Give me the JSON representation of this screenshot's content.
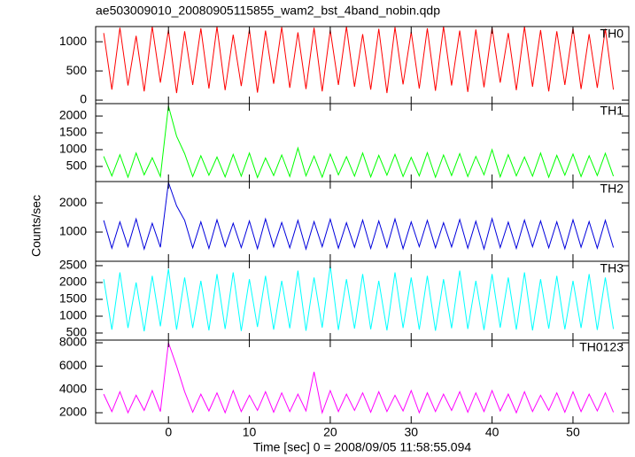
{
  "chart_data": [
    {
      "type": "line",
      "title": "ae503009010_20080905115855_wam2_bst_4band_nobin.qdp",
      "label": "TH0",
      "color": "#ff0000",
      "x": [
        -8,
        -7,
        -6,
        -5,
        -4,
        -3,
        -2,
        -1,
        0,
        1,
        2,
        3,
        4,
        5,
        6,
        7,
        8,
        9,
        10,
        11,
        12,
        13,
        14,
        15,
        16,
        17,
        18,
        19,
        20,
        21,
        22,
        23,
        24,
        25,
        26,
        27,
        28,
        29,
        30,
        31,
        32,
        33,
        34,
        35,
        36,
        37,
        38,
        39,
        40,
        41,
        42,
        43,
        44,
        45,
        46,
        47,
        48,
        49,
        50,
        51,
        52,
        53,
        54,
        55
      ],
      "values": [
        1150,
        180,
        1240,
        250,
        1100,
        150,
        1260,
        300,
        1200,
        120,
        1180,
        260,
        1230,
        200,
        1260,
        170,
        1120,
        240,
        1210,
        130,
        1190,
        280,
        1250,
        210,
        1160,
        190,
        1240,
        150,
        1200,
        260,
        1260,
        230,
        1130,
        180,
        1220,
        120,
        1250,
        270,
        1170,
        200,
        1230,
        160,
        1260,
        250,
        1190,
        140,
        1210,
        220,
        1240,
        300,
        1150,
        170,
        1260,
        230,
        1200,
        150,
        1180,
        260,
        1240,
        190,
        1130,
        210,
        1220,
        180
      ],
      "ylim": [
        -60,
        1260
      ],
      "yticks": [
        0,
        500,
        1000
      ]
    },
    {
      "type": "line",
      "label": "TH1",
      "color": "#00ff00",
      "x": [
        -8,
        -7,
        -6,
        -5,
        -4,
        -3,
        -2,
        -1,
        0,
        1,
        2,
        3,
        4,
        5,
        6,
        7,
        8,
        9,
        10,
        11,
        12,
        13,
        14,
        15,
        16,
        17,
        18,
        19,
        20,
        21,
        22,
        23,
        24,
        25,
        26,
        27,
        28,
        29,
        30,
        31,
        32,
        33,
        34,
        35,
        36,
        37,
        38,
        39,
        40,
        41,
        42,
        43,
        44,
        45,
        46,
        47,
        48,
        49,
        50,
        51,
        52,
        53,
        54,
        55
      ],
      "values": [
        800,
        220,
        850,
        180,
        900,
        250,
        760,
        200,
        2300,
        1400,
        880,
        200,
        820,
        240,
        780,
        190,
        860,
        210,
        900,
        170,
        750,
        230,
        840,
        200,
        1050,
        220,
        810,
        180,
        870,
        250,
        790,
        210,
        900,
        190,
        830,
        240,
        860,
        200,
        770,
        220,
        910,
        180,
        840,
        230,
        880,
        200,
        800,
        250,
        1000,
        190,
        850,
        220,
        780,
        210,
        900,
        180,
        830,
        240,
        870,
        200,
        820,
        230,
        890,
        210
      ],
      "ylim": [
        50,
        2370
      ],
      "yticks": [
        500,
        1000,
        1500,
        2000
      ]
    },
    {
      "type": "line",
      "label": "TH2",
      "color": "#0000dd",
      "ylabel": "Counts/sec",
      "x": [
        -8,
        -7,
        -6,
        -5,
        -4,
        -3,
        -2,
        -1,
        0,
        1,
        2,
        3,
        4,
        5,
        6,
        7,
        8,
        9,
        10,
        11,
        12,
        13,
        14,
        15,
        16,
        17,
        18,
        19,
        20,
        21,
        22,
        23,
        24,
        25,
        26,
        27,
        28,
        29,
        30,
        31,
        32,
        33,
        34,
        35,
        36,
        37,
        38,
        39,
        40,
        41,
        42,
        43,
        44,
        45,
        46,
        47,
        48,
        49,
        50,
        51,
        52,
        53,
        54,
        55
      ],
      "values": [
        1400,
        450,
        1350,
        500,
        1450,
        420,
        1300,
        480,
        2700,
        1900,
        1400,
        460,
        1350,
        440,
        1420,
        500,
        1300,
        470,
        1380,
        430,
        1450,
        490,
        1330,
        460,
        1400,
        420,
        1360,
        500,
        1440,
        450,
        1320,
        480,
        1410,
        440,
        1380,
        470,
        1450,
        430,
        1350,
        500,
        1400,
        460,
        1320,
        490,
        1430,
        450,
        1370,
        420,
        1460,
        470,
        1340,
        440,
        1410,
        500,
        1380,
        460,
        1350,
        430,
        1420,
        480,
        1360,
        450,
        1400,
        470
      ],
      "ylim": [
        0,
        2730
      ],
      "yticks": [
        1000,
        2000
      ]
    },
    {
      "type": "line",
      "label": "TH3",
      "color": "#00ffff",
      "x": [
        -8,
        -7,
        -6,
        -5,
        -4,
        -3,
        -2,
        -1,
        0,
        1,
        2,
        3,
        4,
        5,
        6,
        7,
        8,
        9,
        10,
        11,
        12,
        13,
        14,
        15,
        16,
        17,
        18,
        19,
        20,
        21,
        22,
        23,
        24,
        25,
        26,
        27,
        28,
        29,
        30,
        31,
        32,
        33,
        34,
        35,
        36,
        37,
        38,
        39,
        40,
        41,
        42,
        43,
        44,
        45,
        46,
        47,
        48,
        49,
        50,
        51,
        52,
        53,
        54,
        55
      ],
      "values": [
        2100,
        600,
        2300,
        650,
        2000,
        550,
        2200,
        700,
        2400,
        600,
        2150,
        650,
        2050,
        580,
        2250,
        620,
        2300,
        560,
        2100,
        680,
        2200,
        600,
        2050,
        640,
        2350,
        570,
        2150,
        660,
        2500,
        590,
        2100,
        630,
        2250,
        610,
        2050,
        580,
        2300,
        650,
        2150,
        600,
        2200,
        570,
        2100,
        640,
        2350,
        620,
        2050,
        590,
        2250,
        660,
        2150,
        600,
        2300,
        580,
        2100,
        630,
        2200,
        610,
        2050,
        650,
        2250,
        590,
        2150,
        620
      ],
      "ylim": [
        290,
        2630
      ],
      "yticks": [
        500,
        1000,
        1500,
        2000,
        2500
      ]
    },
    {
      "type": "line",
      "label": "TH0123",
      "color": "#ff00ff",
      "xlabel": "Time [sec] 0 = 2008/09/05 11:58:55.094",
      "x": [
        -8,
        -7,
        -6,
        -5,
        -4,
        -3,
        -2,
        -1,
        0,
        1,
        2,
        3,
        4,
        5,
        6,
        7,
        8,
        9,
        10,
        11,
        12,
        13,
        14,
        15,
        16,
        17,
        18,
        19,
        20,
        21,
        22,
        23,
        24,
        25,
        26,
        27,
        28,
        29,
        30,
        31,
        32,
        33,
        34,
        35,
        36,
        37,
        38,
        39,
        40,
        41,
        42,
        43,
        44,
        45,
        46,
        47,
        48,
        49,
        50,
        51,
        52,
        53,
        54,
        55
      ],
      "values": [
        3600,
        2100,
        3800,
        2000,
        3500,
        2200,
        3900,
        2100,
        8000,
        6000,
        3800,
        2050,
        3600,
        2150,
        3700,
        2000,
        3900,
        2100,
        3500,
        2200,
        3800,
        2050,
        3700,
        2100,
        3600,
        2150,
        5500,
        2000,
        3900,
        2100,
        3600,
        2200,
        3700,
        2050,
        3800,
        2100,
        3500,
        2150,
        3900,
        2000,
        3700,
        2100,
        3600,
        2200,
        3800,
        2050,
        3700,
        2100,
        3900,
        2150,
        3600,
        2000,
        3800,
        2100,
        3500,
        2200,
        3700,
        2050,
        3800,
        2100,
        3600,
        2150,
        3700,
        2050
      ],
      "ylim": [
        1090,
        8230
      ],
      "yticks": [
        2000,
        4000,
        6000,
        8000
      ],
      "xlim": [
        -9,
        56.9
      ],
      "xticks": [
        0,
        10,
        20,
        30,
        40,
        50
      ]
    }
  ]
}
